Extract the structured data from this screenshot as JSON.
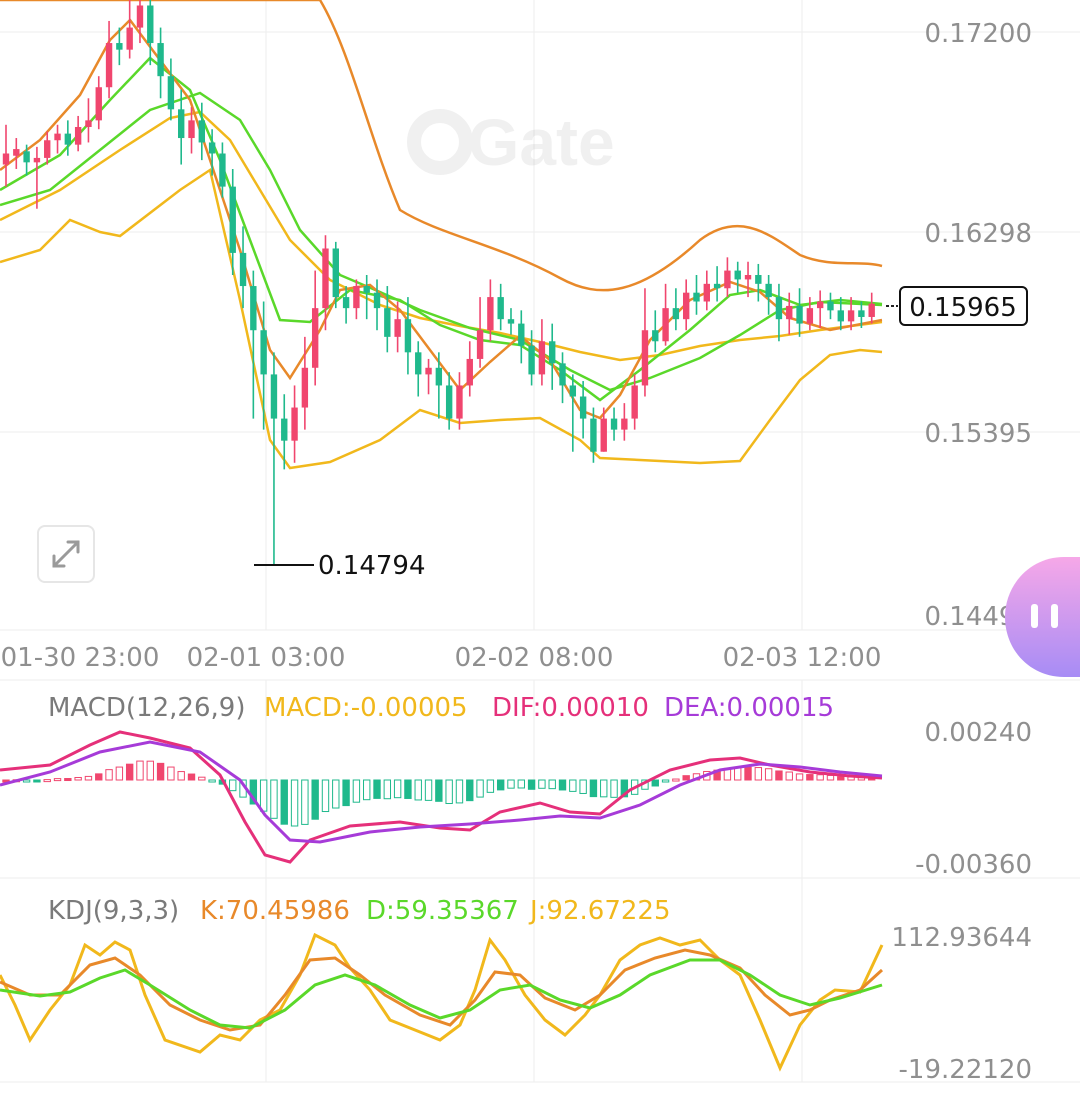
{
  "watermark": "Gate",
  "price_panel": {
    "y_ticks": [
      "0.17200",
      "0.16298",
      "0.15395",
      "0.14493"
    ],
    "last_price": "0.15965",
    "low_label": "0.14794",
    "x_ticks": [
      "01-30 23:00",
      "02-01 03:00",
      "02-02 08:00",
      "02-03 12:00"
    ]
  },
  "macd_panel": {
    "title": "MACD(12,26,9)",
    "macd_label": "MACD:-0.00005",
    "dif_label": "DIF:0.00010",
    "dea_label": "DEA:0.00015",
    "y_ticks": [
      "0.00240",
      "-0.00360"
    ]
  },
  "kdj_panel": {
    "title": "KDJ(9,3,3)",
    "k_label": "K:70.45986",
    "d_label": "D:59.35367",
    "j_label": "J:92.67225",
    "y_ticks": [
      "112.93644",
      "-19.22120"
    ]
  },
  "colors": {
    "up": "#f0466e",
    "down": "#1fb98c",
    "ma_green": "#5ad82a",
    "ma_orange": "#e8892a",
    "boll_yellow": "#f1b81c",
    "macd_dif": "#e5307a",
    "macd_dea": "#a63bd8",
    "kdj_k": "#e8892a",
    "kdj_d": "#5ad82a",
    "kdj_j": "#f1b81c"
  },
  "chart_data": {
    "type": "candlestick",
    "price_range": [
      0.14493,
      0.172
    ],
    "candles": [
      [
        0.166,
        0.1665,
        0.165,
        0.1678
      ],
      [
        0.1664,
        0.1667,
        0.1658,
        0.1672
      ],
      [
        0.1666,
        0.1661,
        0.1655,
        0.1669
      ],
      [
        0.1661,
        0.1663,
        0.164,
        0.1668
      ],
      [
        0.1663,
        0.1671,
        0.166,
        0.1675
      ],
      [
        0.1671,
        0.1674,
        0.1665,
        0.1678
      ],
      [
        0.1674,
        0.1669,
        0.1664,
        0.168
      ],
      [
        0.1669,
        0.1677,
        0.1666,
        0.1682
      ],
      [
        0.1677,
        0.168,
        0.167,
        0.169
      ],
      [
        0.168,
        0.1695,
        0.1676,
        0.17
      ],
      [
        0.1695,
        0.1715,
        0.169,
        0.1725
      ],
      [
        0.1715,
        0.1712,
        0.1705,
        0.1722
      ],
      [
        0.1712,
        0.1722,
        0.1708,
        0.174
      ],
      [
        0.1722,
        0.1732,
        0.1715,
        0.1745
      ],
      [
        0.1732,
        0.1715,
        0.1705,
        0.174
      ],
      [
        0.1715,
        0.17,
        0.169,
        0.1722
      ],
      [
        0.17,
        0.1685,
        0.168,
        0.1708
      ],
      [
        0.1685,
        0.1672,
        0.166,
        0.1694
      ],
      [
        0.1672,
        0.168,
        0.1665,
        0.1686
      ],
      [
        0.168,
        0.167,
        0.1662,
        0.1688
      ],
      [
        0.167,
        0.1665,
        0.1655,
        0.1676
      ],
      [
        0.1665,
        0.165,
        0.1645,
        0.167
      ],
      [
        0.165,
        0.162,
        0.161,
        0.1658
      ],
      [
        0.162,
        0.1605,
        0.1595,
        0.1632
      ],
      [
        0.1605,
        0.1585,
        0.1545,
        0.1612
      ],
      [
        0.1585,
        0.1565,
        0.154,
        0.1598
      ],
      [
        0.1565,
        0.1545,
        0.1479,
        0.1575
      ],
      [
        0.1545,
        0.1535,
        0.1522,
        0.1556
      ],
      [
        0.1535,
        0.155,
        0.1525,
        0.156
      ],
      [
        0.155,
        0.1568,
        0.154,
        0.1582
      ],
      [
        0.1568,
        0.1595,
        0.156,
        0.1612
      ],
      [
        0.1595,
        0.1622,
        0.1585,
        0.1628
      ],
      [
        0.1622,
        0.16,
        0.1595,
        0.1625
      ],
      [
        0.16,
        0.1595,
        0.1588,
        0.1605
      ],
      [
        0.1595,
        0.1605,
        0.159,
        0.1608
      ],
      [
        0.1605,
        0.1602,
        0.159,
        0.161
      ],
      [
        0.1602,
        0.1595,
        0.1585,
        0.1608
      ],
      [
        0.1595,
        0.1582,
        0.1575,
        0.1605
      ],
      [
        0.1582,
        0.159,
        0.1575,
        0.1598
      ],
      [
        0.159,
        0.1575,
        0.1565,
        0.16
      ],
      [
        0.1575,
        0.1565,
        0.1555,
        0.158
      ],
      [
        0.1565,
        0.1568,
        0.1556,
        0.1572
      ],
      [
        0.1568,
        0.156,
        0.1545,
        0.1575
      ],
      [
        0.156,
        0.1545,
        0.154,
        0.1566
      ],
      [
        0.1545,
        0.156,
        0.154,
        0.1566
      ],
      [
        0.156,
        0.1572,
        0.1555,
        0.158
      ],
      [
        0.1572,
        0.1585,
        0.1568,
        0.16
      ],
      [
        0.1585,
        0.16,
        0.158,
        0.1608
      ],
      [
        0.16,
        0.159,
        0.1585,
        0.1606
      ],
      [
        0.159,
        0.1588,
        0.1583,
        0.1595
      ],
      [
        0.1588,
        0.1578,
        0.157,
        0.1594
      ],
      [
        0.1578,
        0.1565,
        0.156,
        0.1585
      ],
      [
        0.1565,
        0.158,
        0.156,
        0.159
      ],
      [
        0.158,
        0.157,
        0.1558,
        0.1588
      ],
      [
        0.157,
        0.156,
        0.1552,
        0.1575
      ],
      [
        0.156,
        0.1555,
        0.153,
        0.1565
      ],
      [
        0.1555,
        0.1545,
        0.1536,
        0.1562
      ],
      [
        0.1545,
        0.153,
        0.1525,
        0.155
      ],
      [
        0.153,
        0.1545,
        0.153,
        0.155
      ],
      [
        0.1545,
        0.154,
        0.1535,
        0.155
      ],
      [
        0.154,
        0.1545,
        0.1535,
        0.1552
      ],
      [
        0.1545,
        0.156,
        0.154,
        0.1565
      ],
      [
        0.156,
        0.1585,
        0.1555,
        0.1604
      ],
      [
        0.1585,
        0.158,
        0.1575,
        0.1594
      ],
      [
        0.158,
        0.1595,
        0.1578,
        0.1606
      ],
      [
        0.1595,
        0.159,
        0.1585,
        0.1604
      ],
      [
        0.159,
        0.1602,
        0.1585,
        0.1608
      ],
      [
        0.1602,
        0.1598,
        0.1592,
        0.161
      ],
      [
        0.1598,
        0.1606,
        0.1594,
        0.1612
      ],
      [
        0.1606,
        0.1604,
        0.1598,
        0.1614
      ],
      [
        0.1604,
        0.1612,
        0.16,
        0.1618
      ],
      [
        0.1612,
        0.1608,
        0.1602,
        0.1616
      ],
      [
        0.1608,
        0.161,
        0.16,
        0.1616
      ],
      [
        0.161,
        0.1606,
        0.1598,
        0.1615
      ],
      [
        0.1606,
        0.16,
        0.1592,
        0.161
      ],
      [
        0.16,
        0.159,
        0.158,
        0.1606
      ],
      [
        0.159,
        0.1596,
        0.1583,
        0.1602
      ],
      [
        0.1596,
        0.1588,
        0.1582,
        0.1604
      ],
      [
        0.1588,
        0.1595,
        0.1585,
        0.16
      ],
      [
        0.1595,
        0.1598,
        0.1586,
        0.1603
      ],
      [
        0.1598,
        0.1594,
        0.159,
        0.1602
      ],
      [
        0.1594,
        0.1589,
        0.1585,
        0.16
      ],
      [
        0.1589,
        0.1594,
        0.1585,
        0.16
      ],
      [
        0.1594,
        0.1591,
        0.1586,
        0.1598
      ],
      [
        0.1591,
        0.1597,
        0.1588,
        0.1602
      ]
    ]
  }
}
